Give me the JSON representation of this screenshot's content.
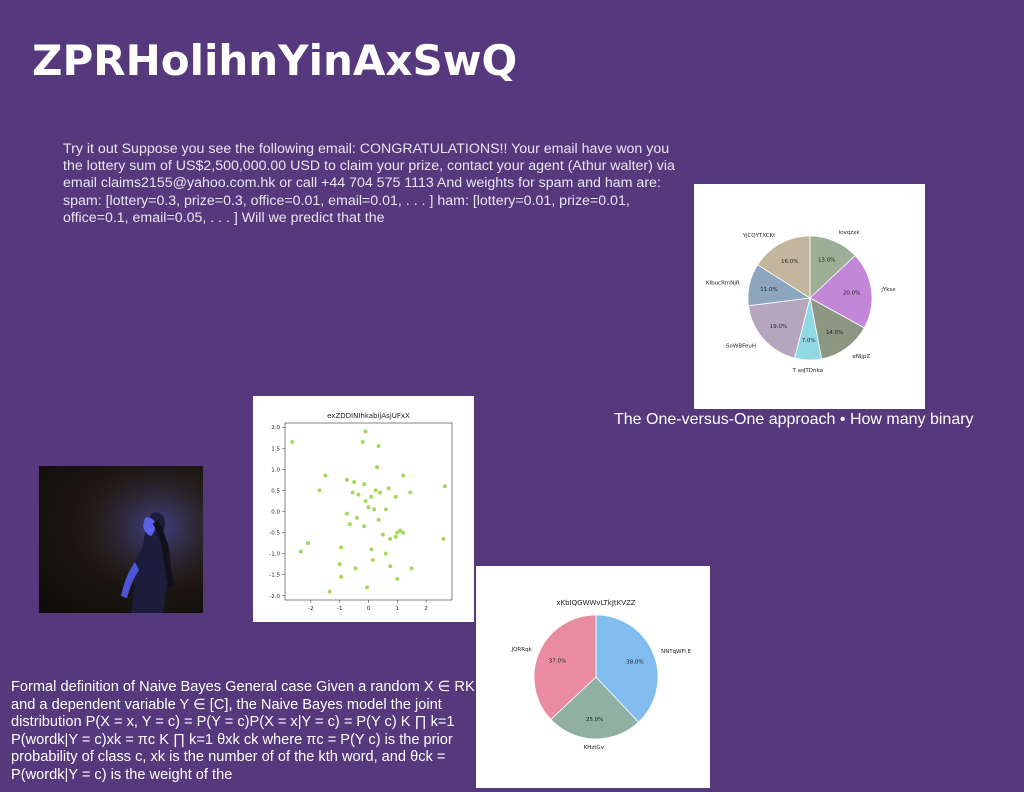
{
  "slide": {
    "title": "ZPRHolihnYinAxSwQ",
    "paragraph1": "Try it out Suppose you see the following email: CONGRATULATIONS!! Your email have won you the lottery sum of US$2,500,000.00 USD to claim your prize, contact your agent (Athur walter) via email claims2155@yahoo.com.hk or call +44 704 575 1113 And weights for spam and ham are: spam: [lottery=0.3, prize=0.3, office=0.01, email=0.01, . . . ] ham: [lottery=0.01, prize=0.01, office=0.1, email=0.05, . . . ] Will we predict that the",
    "caption": "The One-versus-One approach • How many binary",
    "paragraph2": "Formal definition of Naive Bayes General case Given a random X ∈ RK and a dependent variable Y ∈ [C], the Naive Bayes model the joint distribution P(X = x, Y = c) = P(Y = c)P(X = x|Y = c) = P(Y c) K ∏ k=1 P(wordk|Y = c)xk = πc K ∏ k=1 θxk ck where πc = P(Y c) is the prior probability of class c, xk is the number of of the kth word, and θck = P(wordk|Y = c) is the weight of the"
  },
  "chart_data": [
    {
      "type": "pie",
      "title": "",
      "labels": [
        "lovqzxk",
        "jYksx",
        "eNIjpZ",
        "T asJTDnka",
        "SoWBFeuH",
        "KIbucRmNjR",
        "YjCQYTXCKt"
      ],
      "values": [
        13.0,
        20.0,
        14.0,
        7.0,
        19.0,
        11.0,
        16.0
      ],
      "value_labels": [
        "13.0%",
        "20.0%",
        "14.0%",
        "7.0%",
        "19.0%",
        "11.0%",
        "16.0%"
      ],
      "colors": [
        "#9daf97",
        "#c287d6",
        "#8c9783",
        "#90d9e4",
        "#b6a6bd",
        "#8ca6bd",
        "#c3b59e"
      ]
    },
    {
      "type": "scatter",
      "title": "exZDDINIhkabijAsjUFxX",
      "xlim": [
        -2.9,
        2.9
      ],
      "ylim": [
        -2.1,
        2.1
      ],
      "xticks": [
        -2,
        -1,
        0,
        1,
        2
      ],
      "yticks": [
        2.0,
        1.5,
        1.0,
        0.5,
        0.0,
        -0.5,
        -1.0,
        -1.5,
        -2.0
      ],
      "color": "#a6d75e",
      "points": [
        [
          -0.1,
          1.9
        ],
        [
          -2.65,
          1.65
        ],
        [
          -0.2,
          1.65
        ],
        [
          0.35,
          1.55
        ],
        [
          0.3,
          1.05
        ],
        [
          -1.5,
          0.85
        ],
        [
          1.2,
          0.85
        ],
        [
          -0.75,
          0.75
        ],
        [
          -0.5,
          0.7
        ],
        [
          -0.15,
          0.65
        ],
        [
          0.7,
          0.55
        ],
        [
          -1.7,
          0.5
        ],
        [
          -0.55,
          0.45
        ],
        [
          0.25,
          0.5
        ],
        [
          0.4,
          0.45
        ],
        [
          1.45,
          0.45
        ],
        [
          -0.35,
          0.4
        ],
        [
          0.1,
          0.35
        ],
        [
          0.95,
          0.35
        ],
        [
          2.65,
          0.6
        ],
        [
          -0.1,
          0.25
        ],
        [
          0.0,
          0.1
        ],
        [
          0.2,
          0.05
        ],
        [
          0.6,
          0.05
        ],
        [
          -0.75,
          -0.05
        ],
        [
          -0.4,
          -0.15
        ],
        [
          0.35,
          -0.2
        ],
        [
          -0.65,
          -0.3
        ],
        [
          -0.15,
          -0.35
        ],
        [
          1.1,
          -0.45
        ],
        [
          1.2,
          -0.5
        ],
        [
          1.0,
          -0.5
        ],
        [
          0.5,
          -0.55
        ],
        [
          0.95,
          -0.6
        ],
        [
          0.75,
          -0.65
        ],
        [
          2.6,
          -0.65
        ],
        [
          -2.1,
          -0.75
        ],
        [
          -0.95,
          -0.85
        ],
        [
          0.1,
          -0.9
        ],
        [
          -2.35,
          -0.95
        ],
        [
          0.6,
          -1.0
        ],
        [
          0.15,
          -1.15
        ],
        [
          -1.0,
          -1.25
        ],
        [
          0.75,
          -1.3
        ],
        [
          -0.45,
          -1.35
        ],
        [
          1.5,
          -1.35
        ],
        [
          -0.95,
          -1.55
        ],
        [
          1.0,
          -1.6
        ],
        [
          -0.05,
          -1.8
        ],
        [
          -1.35,
          -1.9
        ]
      ]
    },
    {
      "type": "pie",
      "title": "xKbIQGWWvLTkJtKVZZ",
      "labels": [
        "NNTqWFi E",
        "KHztGv",
        "JQRRqk"
      ],
      "values": [
        38.0,
        25.0,
        37.0
      ],
      "value_labels": [
        "38.0%",
        "25.0%",
        "37.0%"
      ],
      "colors": [
        "#81bcee",
        "#8fb0a2",
        "#e98ca1"
      ]
    }
  ]
}
